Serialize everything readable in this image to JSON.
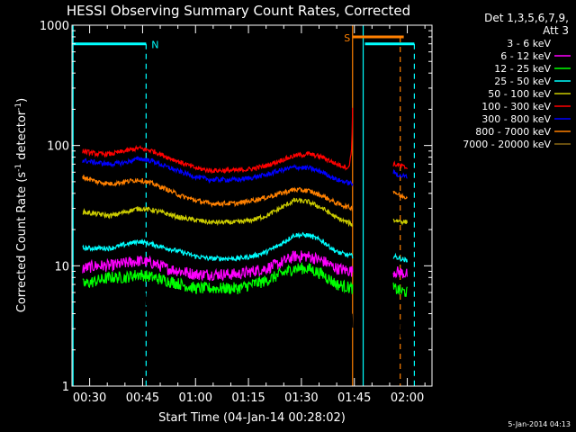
{
  "chart_data": {
    "type": "line",
    "title": "HESSI Observing Summary Count Rates, Corrected",
    "xlabel": "Start Time (04-Jan-14 00:28:02)",
    "ylabel_main": "Corrected Count Rate (s",
    "ylabel_sup1": "-1",
    "ylabel_mid": " detector",
    "ylabel_sup2": "-1",
    "ylabel_end": ")",
    "y_scale": "log",
    "ylim": [
      1,
      1000
    ],
    "xlim_minutes": [
      25,
      127
    ],
    "y_ticks": [
      {
        "value": 1,
        "label": "1"
      },
      {
        "value": 10,
        "label": "10"
      },
      {
        "value": 100,
        "label": "100"
      },
      {
        "value": 1000,
        "label": "1000"
      }
    ],
    "x_ticks": [
      {
        "minute": 30,
        "label": "00:30"
      },
      {
        "minute": 45,
        "label": "00:45"
      },
      {
        "minute": 60,
        "label": "01:00"
      },
      {
        "minute": 75,
        "label": "01:15"
      },
      {
        "minute": 90,
        "label": "01:30"
      },
      {
        "minute": 105,
        "label": "01:45"
      },
      {
        "minute": 120,
        "label": "02:00"
      }
    ],
    "legend_title": [
      "Det 1,3,5,6,7,9,",
      "Att 3"
    ],
    "legend_position": "right",
    "series": [
      {
        "name": "3 - 6 keV",
        "color": "#000000",
        "points": [
          [
            28,
            5
          ],
          [
            32,
            5
          ],
          [
            36,
            4.5
          ],
          [
            40,
            6
          ],
          [
            44,
            5
          ],
          [
            48,
            4
          ],
          [
            52,
            4
          ],
          [
            56,
            3.5
          ],
          [
            60,
            3
          ],
          [
            64,
            2.5
          ],
          [
            68,
            2.5
          ],
          [
            72,
            3
          ],
          [
            76,
            3
          ],
          [
            80,
            3
          ],
          [
            84,
            4
          ],
          [
            88,
            5
          ],
          [
            92,
            5.5
          ],
          [
            96,
            5
          ],
          [
            100,
            4
          ],
          [
            103,
            3.5
          ],
          [
            104.5,
            3.2
          ],
          [
            116,
            3.5
          ],
          [
            119,
            3.2
          ],
          [
            120,
            3
          ]
        ]
      },
      {
        "name": "6 - 12 keV",
        "color": "#ff00ff",
        "points": [
          [
            28,
            9.5
          ],
          [
            32,
            10
          ],
          [
            36,
            10
          ],
          [
            40,
            10.5
          ],
          [
            44,
            11
          ],
          [
            48,
            10.5
          ],
          [
            52,
            9.5
          ],
          [
            56,
            9
          ],
          [
            60,
            8.5
          ],
          [
            64,
            8.5
          ],
          [
            68,
            8.5
          ],
          [
            72,
            8.5
          ],
          [
            76,
            9
          ],
          [
            80,
            9.5
          ],
          [
            84,
            10.5
          ],
          [
            88,
            12
          ],
          [
            92,
            12
          ],
          [
            96,
            11
          ],
          [
            100,
            9.5
          ],
          [
            104.5,
            9
          ],
          [
            116,
            9
          ],
          [
            118,
            8.8
          ],
          [
            120,
            8.5
          ]
        ]
      },
      {
        "name": "12 - 25 keV",
        "color": "#00ff00",
        "points": [
          [
            28,
            7
          ],
          [
            32,
            7.5
          ],
          [
            36,
            8
          ],
          [
            40,
            8
          ],
          [
            44,
            8.5
          ],
          [
            48,
            8
          ],
          [
            52,
            7.5
          ],
          [
            56,
            7
          ],
          [
            60,
            6.5
          ],
          [
            64,
            6.5
          ],
          [
            68,
            6.5
          ],
          [
            72,
            6.5
          ],
          [
            76,
            7
          ],
          [
            80,
            7.5
          ],
          [
            84,
            8.5
          ],
          [
            88,
            9.5
          ],
          [
            92,
            9.5
          ],
          [
            96,
            8.5
          ],
          [
            100,
            7
          ],
          [
            104.5,
            6.5
          ],
          [
            116,
            6.5
          ],
          [
            118,
            6.2
          ],
          [
            120,
            6
          ]
        ]
      },
      {
        "name": "25 - 50 keV",
        "color": "#00ffff",
        "points": [
          [
            28,
            14
          ],
          [
            32,
            14
          ],
          [
            36,
            14
          ],
          [
            40,
            15
          ],
          [
            44,
            16
          ],
          [
            48,
            15
          ],
          [
            52,
            14
          ],
          [
            56,
            13
          ],
          [
            60,
            12
          ],
          [
            64,
            11.5
          ],
          [
            68,
            11.5
          ],
          [
            72,
            11.5
          ],
          [
            76,
            12
          ],
          [
            80,
            13
          ],
          [
            84,
            15
          ],
          [
            88,
            18
          ],
          [
            92,
            18
          ],
          [
            96,
            16
          ],
          [
            100,
            13
          ],
          [
            104.5,
            12
          ],
          [
            116,
            12
          ],
          [
            118,
            11.5
          ],
          [
            120,
            11
          ]
        ]
      },
      {
        "name": "50 - 100 keV",
        "color": "#cccc00",
        "points": [
          [
            28,
            28
          ],
          [
            32,
            27
          ],
          [
            36,
            26
          ],
          [
            40,
            28
          ],
          [
            44,
            30
          ],
          [
            48,
            29
          ],
          [
            52,
            27
          ],
          [
            56,
            25
          ],
          [
            60,
            24
          ],
          [
            64,
            23
          ],
          [
            68,
            23
          ],
          [
            72,
            23
          ],
          [
            76,
            24
          ],
          [
            80,
            26
          ],
          [
            84,
            30
          ],
          [
            88,
            35
          ],
          [
            92,
            34
          ],
          [
            96,
            30
          ],
          [
            100,
            25
          ],
          [
            104.5,
            22
          ],
          [
            116,
            24
          ],
          [
            118,
            23.5
          ],
          [
            120,
            23
          ]
        ]
      },
      {
        "name": "100 - 300 keV",
        "color": "#ff0000",
        "points": [
          [
            28,
            90
          ],
          [
            32,
            85
          ],
          [
            36,
            85
          ],
          [
            40,
            90
          ],
          [
            44,
            95
          ],
          [
            48,
            90
          ],
          [
            52,
            80
          ],
          [
            56,
            72
          ],
          [
            60,
            65
          ],
          [
            64,
            62
          ],
          [
            68,
            62
          ],
          [
            72,
            62
          ],
          [
            76,
            64
          ],
          [
            80,
            68
          ],
          [
            84,
            75
          ],
          [
            88,
            82
          ],
          [
            92,
            85
          ],
          [
            96,
            80
          ],
          [
            100,
            70
          ],
          [
            103.5,
            65
          ],
          [
            104.3,
            100
          ],
          [
            104.6,
            300
          ],
          [
            116,
            70
          ],
          [
            118,
            68
          ],
          [
            120,
            65
          ]
        ]
      },
      {
        "name": "300 - 800 keV",
        "color": "#0000ff",
        "points": [
          [
            28,
            75
          ],
          [
            32,
            72
          ],
          [
            36,
            70
          ],
          [
            40,
            72
          ],
          [
            44,
            78
          ],
          [
            48,
            74
          ],
          [
            52,
            66
          ],
          [
            56,
            60
          ],
          [
            60,
            55
          ],
          [
            64,
            52
          ],
          [
            68,
            52
          ],
          [
            72,
            52
          ],
          [
            76,
            54
          ],
          [
            80,
            57
          ],
          [
            84,
            62
          ],
          [
            88,
            66
          ],
          [
            92,
            65
          ],
          [
            96,
            60
          ],
          [
            100,
            52
          ],
          [
            104.5,
            48
          ],
          [
            116,
            60
          ],
          [
            118,
            56
          ],
          [
            120,
            55
          ]
        ]
      },
      {
        "name": "800 - 7000 keV",
        "color": "#ff8000",
        "points": [
          [
            28,
            55
          ],
          [
            32,
            50
          ],
          [
            36,
            48
          ],
          [
            40,
            50
          ],
          [
            44,
            52
          ],
          [
            48,
            48
          ],
          [
            52,
            43
          ],
          [
            56,
            38
          ],
          [
            60,
            35
          ],
          [
            64,
            33
          ],
          [
            68,
            33
          ],
          [
            72,
            33
          ],
          [
            76,
            35
          ],
          [
            80,
            37
          ],
          [
            84,
            40
          ],
          [
            88,
            43
          ],
          [
            92,
            42
          ],
          [
            96,
            38
          ],
          [
            100,
            33
          ],
          [
            104.5,
            30
          ],
          [
            116,
            42
          ],
          [
            118,
            38
          ],
          [
            120,
            37
          ]
        ]
      },
      {
        "name": "7000 - 20000 keV",
        "color": "#8b6914",
        "points": []
      }
    ],
    "flags": [
      {
        "label": "N",
        "color": "#00ffff",
        "start": 25,
        "end": 46,
        "level": 700,
        "dashed_at": [
          46
        ]
      },
      {
        "label": "S",
        "color": "#ff8000",
        "start": 104.5,
        "end": 119,
        "level": 800,
        "dashed_at": [
          118
        ]
      },
      {
        "label": "",
        "color": "#00ffff",
        "start": 108,
        "end": 122,
        "level": 700,
        "dashed_at": [
          122
        ]
      }
    ],
    "vertical_lines": [
      {
        "minute": 25.3,
        "color": "#00ffff",
        "style": "solid"
      },
      {
        "minute": 104.5,
        "color": "#ff8000",
        "style": "solid"
      },
      {
        "minute": 107.5,
        "color": "#00ffff",
        "style": "solid"
      }
    ]
  },
  "footer_timestamp": "5-Jan-2014 04:13"
}
